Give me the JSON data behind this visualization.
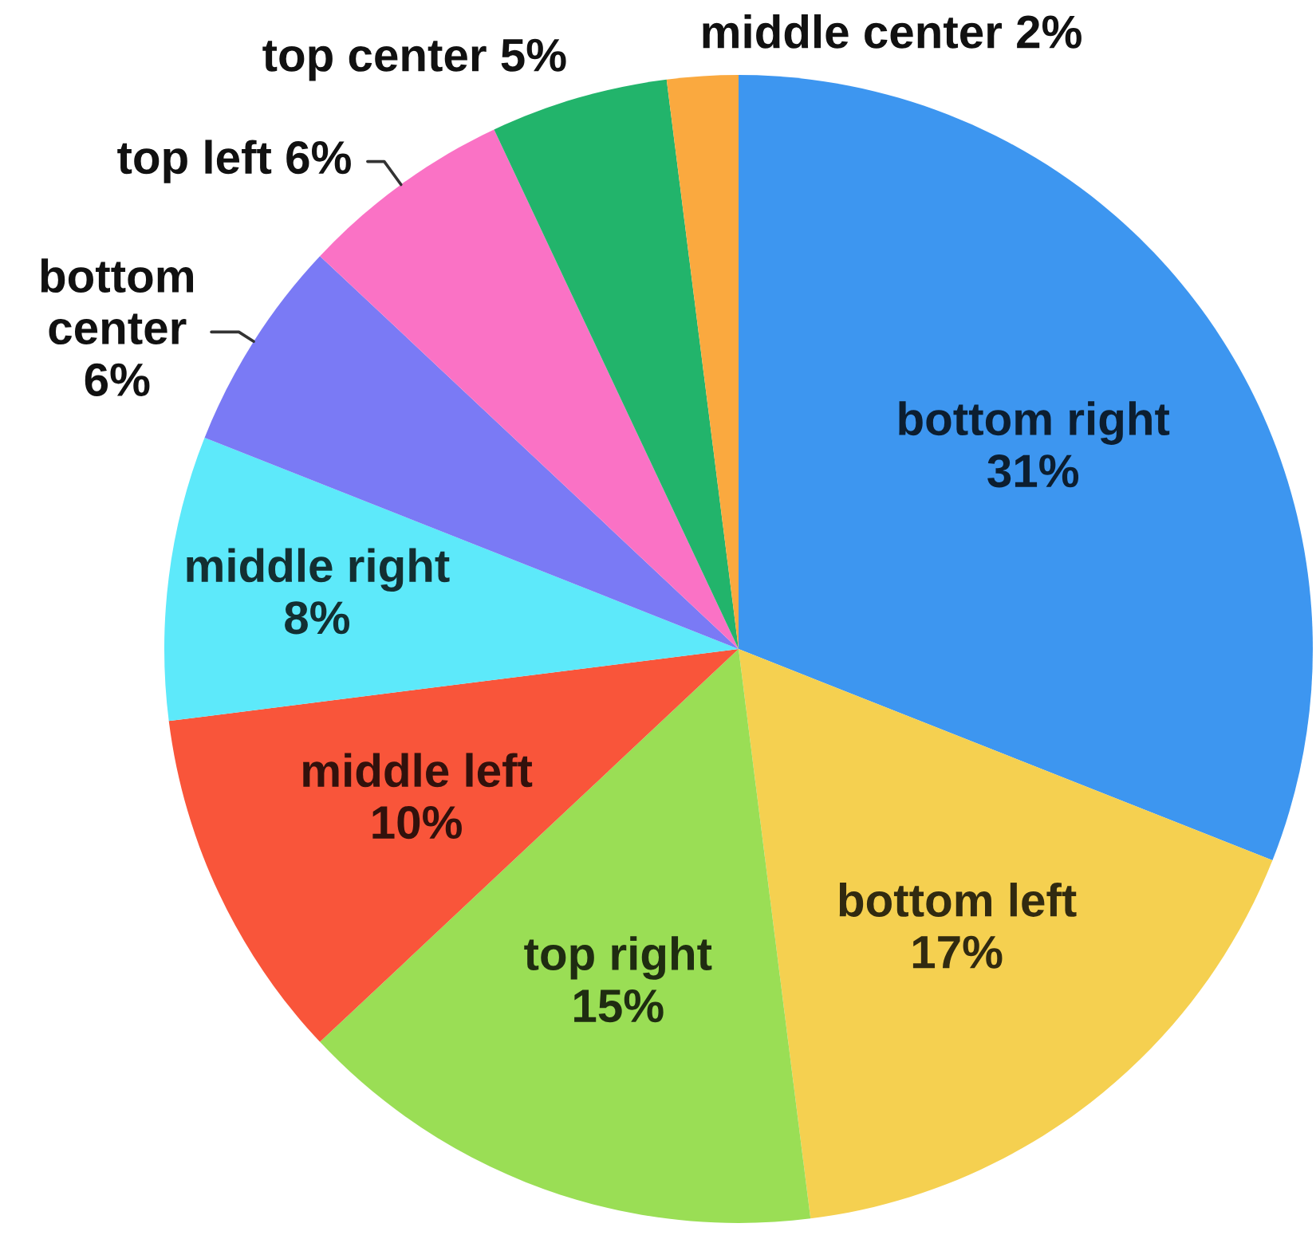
{
  "chart_data": {
    "type": "pie",
    "categories": [
      "bottom right",
      "bottom left",
      "top right",
      "middle left",
      "middle right",
      "bottom center",
      "top left",
      "top center",
      "middle center"
    ],
    "values": [
      31,
      17,
      15,
      10,
      8,
      6,
      6,
      5,
      2
    ],
    "value_labels": [
      "31%",
      "17%",
      "15%",
      "10%",
      "8%",
      "6%",
      "6%",
      "5%",
      "2%"
    ],
    "colors": [
      "#3d96f0",
      "#f5d050",
      "#9ade55",
      "#f9553a",
      "#5de9fa",
      "#7a7af5",
      "#fa72c5",
      "#22b46b",
      "#faa93f"
    ]
  }
}
